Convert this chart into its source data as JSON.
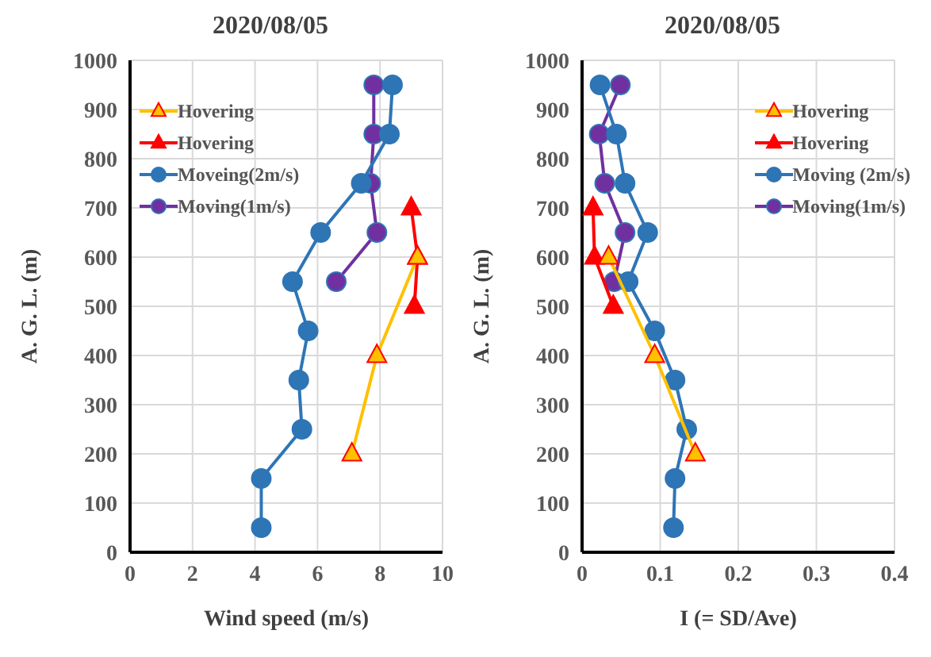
{
  "chart_data": [
    {
      "type": "line",
      "title": "2020/08/05",
      "xlabel": "Wind speed (m/s)",
      "ylabel": "A. G. L. (m)",
      "xlim": [
        0,
        10
      ],
      "xticks": [
        0,
        2,
        4,
        6,
        8,
        10
      ],
      "ylim": [
        0,
        1000
      ],
      "yticks": [
        0,
        100,
        200,
        300,
        400,
        500,
        600,
        700,
        800,
        900,
        1000
      ],
      "grid": true,
      "legend": "top left",
      "series": [
        {
          "name": "Hovering",
          "color": "#ffc000",
          "marker": "triangle",
          "x": [
            7.1,
            7.9,
            9.2
          ],
          "values": [
            200,
            400,
            600
          ]
        },
        {
          "name": "Hovering",
          "color": "#ff0000",
          "marker": "triangle",
          "x": [
            9.0,
            9.2,
            9.1
          ],
          "values": [
            700,
            600,
            500
          ]
        },
        {
          "name": "Moveing(2m/s)",
          "color": "#2e75b6",
          "marker": "circle",
          "x": [
            8.4,
            8.3,
            7.4,
            6.1,
            5.2,
            5.7,
            5.4,
            5.5,
            4.2,
            4.2
          ],
          "values": [
            950,
            850,
            750,
            650,
            550,
            450,
            350,
            250,
            150,
            50
          ]
        },
        {
          "name": "Moving(1m/s)",
          "color": "#7030a0",
          "marker": "circle",
          "x": [
            7.8,
            7.8,
            7.7,
            7.9,
            6.6
          ],
          "values": [
            950,
            850,
            750,
            650,
            550
          ]
        }
      ]
    },
    {
      "type": "line",
      "title": "2020/08/05",
      "xlabel": "I (= SD/Ave)",
      "ylabel": "A. G. L. (m)",
      "xlim": [
        0,
        0.4
      ],
      "xticks": [
        0,
        0.1,
        0.2,
        0.3,
        0.4
      ],
      "ylim": [
        0,
        1000
      ],
      "yticks": [
        0,
        100,
        200,
        300,
        400,
        500,
        600,
        700,
        800,
        900,
        1000
      ],
      "grid": true,
      "legend": "top right",
      "series": [
        {
          "name": "Hovering",
          "color": "#ffc000",
          "marker": "triangle",
          "x": [
            0.034,
            0.093,
            0.145
          ],
          "values": [
            600,
            400,
            200
          ]
        },
        {
          "name": "Hovering",
          "color": "#ff0000",
          "marker": "triangle",
          "x": [
            0.014,
            0.016,
            0.04
          ],
          "values": [
            700,
            600,
            500
          ]
        },
        {
          "name": "Moving (2m/s)",
          "color": "#2e75b6",
          "marker": "circle",
          "x": [
            0.023,
            0.044,
            0.055,
            0.084,
            0.059,
            0.093,
            0.119,
            0.134,
            0.119,
            0.117
          ],
          "values": [
            950,
            850,
            750,
            650,
            550,
            450,
            350,
            250,
            150,
            50
          ]
        },
        {
          "name": "Moving(1m/s)",
          "color": "#7030a0",
          "marker": "circle",
          "x": [
            0.049,
            0.022,
            0.029,
            0.055,
            0.041
          ],
          "values": [
            950,
            850,
            750,
            650,
            550
          ]
        }
      ]
    }
  ]
}
